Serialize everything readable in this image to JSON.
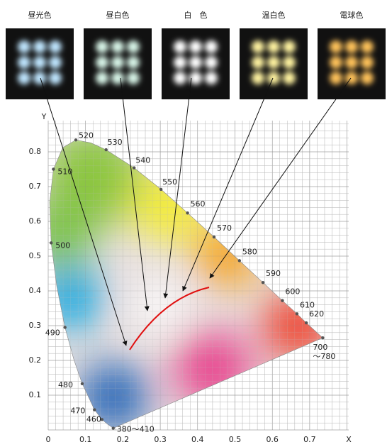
{
  "images": [
    {
      "label": "昼光色"
    },
    {
      "label": "昼白色"
    },
    {
      "label": "白　色"
    },
    {
      "label": "温白色"
    },
    {
      "label": "電球色"
    }
  ],
  "axes": {
    "x_label": "X",
    "y_label": "Y",
    "x_ticks": [
      "0",
      "0.1",
      "0.2",
      "0.3",
      "0.4",
      "0.5",
      "0.6",
      "0.7"
    ],
    "y_ticks": [
      "0.1",
      "0.2",
      "0.3",
      "0.4",
      "0.5",
      "0.6",
      "0.7",
      "0.8"
    ]
  },
  "wavelengths": [
    "380～410",
    "460",
    "470",
    "480",
    "490",
    "500",
    "510",
    "520",
    "530",
    "540",
    "550",
    "560",
    "570",
    "580",
    "590",
    "600",
    "610",
    "620",
    "700",
    "～780"
  ]
}
